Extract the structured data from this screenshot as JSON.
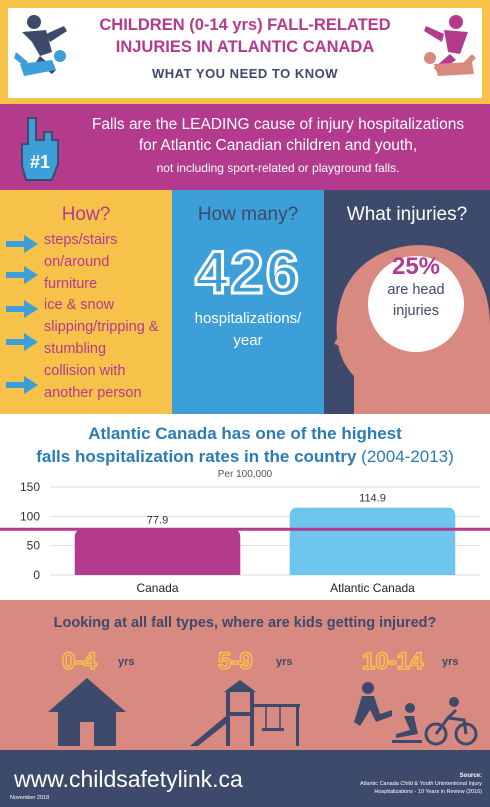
{
  "header": {
    "title_line1": "CHILDREN (0-14 yrs) FALL-RELATED",
    "title_line2": "INJURIES  IN ATLANTIC CANADA",
    "subtitle": "WHAT YOU NEED TO KNOW"
  },
  "leading": {
    "badge": "#1",
    "line1": "Falls are the LEADING cause of injury hospitalizations",
    "line2": "for Atlantic Canadian children and youth,",
    "line3": "not including sport-related or playground falls."
  },
  "how": {
    "title": "How?",
    "items": [
      {
        "line1": "steps/stairs"
      },
      {
        "line1": "on/around",
        "line2": "furniture"
      },
      {
        "line1": "ice & snow"
      },
      {
        "line1": "slipping/tripping &",
        "line2": "stumbling"
      },
      {
        "line1": "collision with",
        "line2": "another person"
      }
    ]
  },
  "how_many": {
    "title": "How many?",
    "number": "426",
    "label_line1": "hospitalizations/",
    "label_line2": "year"
  },
  "what": {
    "title": "What injuries?",
    "percent": "25%",
    "label_line1": "are head",
    "label_line2": "injuries"
  },
  "chart_data": {
    "type": "bar",
    "title_line1": "Atlantic Canada has one of the highest",
    "title_line2": "falls hospitalization rates in the country",
    "title_years": "(2004-2013)",
    "subtitle": "Per 100,000",
    "categories": [
      "Canada",
      "Atlantic Canada"
    ],
    "values": [
      77.9,
      114.9
    ],
    "value_labels": [
      "77.9",
      "114.9"
    ],
    "bar_colors": [
      "#b43a8e",
      "#6ec5ee"
    ],
    "yticks": [
      "0",
      "50",
      "100",
      "150"
    ],
    "ylim": [
      0,
      150
    ],
    "reference_line": 77.9,
    "reference_color": "#b43a8e",
    "grid": true
  },
  "where": {
    "title": "Looking at all fall types, where are kids getting injured?",
    "groups": [
      {
        "age": "0-4",
        "unit": "yrs",
        "icon": "house-icon"
      },
      {
        "age": "5-9",
        "unit": "yrs",
        "icon": "playground-icon"
      },
      {
        "age": "10-14",
        "unit": "yrs",
        "icon": "sports-icon"
      }
    ]
  },
  "footer": {
    "site": "www.childsafetylink.ca",
    "date": "November 2018",
    "source_label": "Source:",
    "source_line1": "Atlantic Canada Child & Youth Unintentional Injury",
    "source_line2": "Hospitalizations - 10 Years in Review (2016)"
  },
  "colors": {
    "magenta": "#b43a8e",
    "yellow": "#f6c24a",
    "blue": "#3c9fd8",
    "navy": "#3d4a6c",
    "salmon": "#d88a80"
  }
}
